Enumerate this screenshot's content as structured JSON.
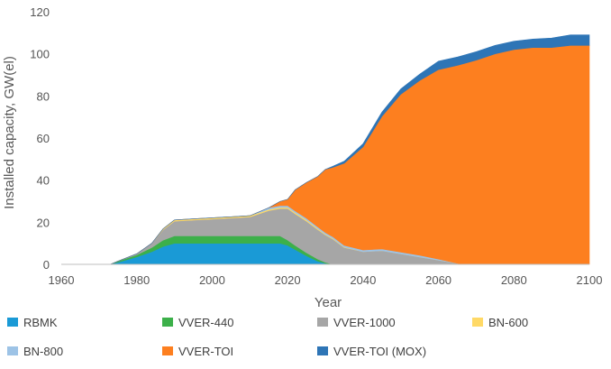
{
  "chart_data": {
    "type": "area",
    "stacked": true,
    "title": "",
    "xlabel": "Year",
    "ylabel": "Installed capacity, GW(el)",
    "xlim": [
      1960,
      2100
    ],
    "ylim": [
      0,
      120
    ],
    "xticks": [
      1960,
      1980,
      2000,
      2020,
      2040,
      2060,
      2080,
      2100
    ],
    "yticks": [
      0,
      20,
      40,
      60,
      80,
      100,
      120
    ],
    "legend_position": "bottom",
    "x": [
      1960,
      1973,
      1975,
      1980,
      1984,
      1987,
      1990,
      1995,
      2000,
      2005,
      2010,
      2015,
      2018,
      2020,
      2022,
      2025,
      2028,
      2030,
      2032,
      2035,
      2040,
      2045,
      2050,
      2055,
      2060,
      2065,
      2066,
      2070,
      2075,
      2080,
      2085,
      2090,
      2095,
      2100
    ],
    "series": [
      {
        "name": "RBMK",
        "color": "#1a9ad6",
        "values": [
          0,
          0,
          1,
          3.5,
          6,
          8.5,
          10,
          10,
          10,
          10,
          10,
          10,
          10,
          9,
          7,
          4,
          1.5,
          0.5,
          0,
          0,
          0,
          0,
          0,
          0,
          0,
          0,
          0,
          0,
          0,
          0,
          0,
          0,
          0,
          0
        ]
      },
      {
        "name": "VVER-440",
        "color": "#3cb04a",
        "values": [
          0,
          0,
          0.5,
          1,
          2,
          3,
          3.5,
          3.5,
          3.5,
          3.5,
          3.5,
          3.5,
          3.5,
          2.5,
          2,
          1.5,
          1,
          0.5,
          0,
          0,
          0,
          0,
          0,
          0,
          0,
          0,
          0,
          0,
          0,
          0,
          0,
          0,
          0,
          0
        ]
      },
      {
        "name": "VVER-1000",
        "color": "#a6a6a6",
        "values": [
          0,
          0,
          0,
          0.5,
          2,
          5,
          7,
          7.5,
          8,
          8.5,
          9,
          12,
          13,
          15,
          15,
          15,
          14,
          13,
          12,
          8,
          6,
          6.5,
          5,
          3.5,
          2,
          0.5,
          0,
          0,
          0,
          0,
          0,
          0,
          0,
          0
        ]
      },
      {
        "name": "BN-600",
        "color": "#ffd966",
        "values": [
          0,
          0,
          0,
          0,
          0,
          0.4,
          0.6,
          0.6,
          0.6,
          0.6,
          0.6,
          0.6,
          0.6,
          0.6,
          0.6,
          0.6,
          0.5,
          0.3,
          0.3,
          0.2,
          0,
          0,
          0,
          0,
          0,
          0,
          0,
          0,
          0,
          0,
          0,
          0,
          0,
          0
        ]
      },
      {
        "name": "BN-800",
        "color": "#9dc3e6",
        "values": [
          0,
          0,
          0,
          0,
          0,
          0,
          0,
          0,
          0,
          0,
          0,
          0.8,
          0.8,
          0.8,
          0.8,
          0.8,
          0.8,
          0.8,
          0.8,
          0.8,
          0.8,
          0.8,
          0.8,
          0.8,
          0.5,
          0,
          0,
          0,
          0,
          0,
          0,
          0,
          0,
          0
        ]
      },
      {
        "name": "VVER-TOI",
        "color": "#fd7f1f",
        "values": [
          0,
          0,
          0,
          0,
          0,
          0,
          0,
          0,
          0,
          0,
          0,
          0,
          2,
          3,
          10,
          17,
          24,
          30,
          33,
          39,
          49,
          63,
          75,
          83,
          90,
          94,
          95,
          97,
          100,
          102,
          103,
          103,
          104,
          104
        ]
      },
      {
        "name": "VVER-TOI (MOX)",
        "color": "#2e75b6",
        "values": [
          0,
          0,
          0,
          0,
          0,
          0,
          0,
          0,
          0,
          0,
          0,
          0,
          0,
          0,
          0,
          0,
          0,
          0,
          0.5,
          1,
          1.5,
          2,
          2.5,
          3,
          4,
          4,
          4,
          4,
          4,
          4,
          4,
          4.5,
          5,
          5
        ]
      }
    ]
  }
}
